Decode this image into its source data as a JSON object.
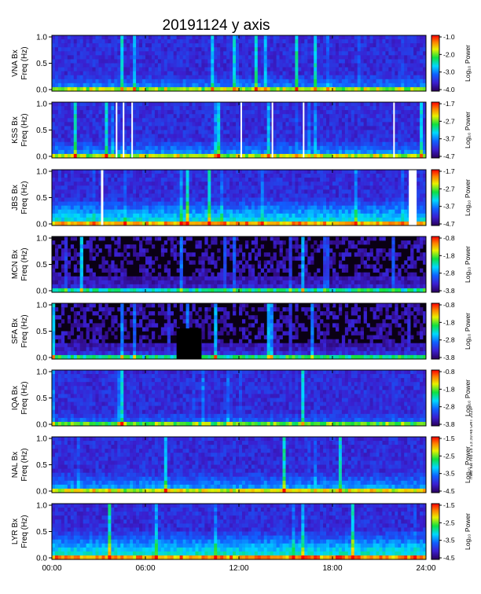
{
  "title": "20191124  y  axis",
  "side_note": "mod Tue Feb 18 13:30:48 GMT 2020",
  "chart_data": {
    "type": "heatmap",
    "title": "20191124  y  axis",
    "x_ticks": [
      "00:00",
      "06:00",
      "12:00",
      "18:00",
      "24:00"
    ],
    "x_range_hours": [
      0,
      24
    ],
    "y_range_hz": [
      0,
      1.0
    ],
    "y_ticks": [
      "0.0",
      "0.5",
      "1.0"
    ],
    "colorbar_label": "Log₁₀ Power",
    "panels": [
      {
        "station": "VNA Bx",
        "ylabel": "Freq (Hz)",
        "cbar_ticks": [
          "-1.0",
          "-2.0",
          "-3.0",
          "-4.0"
        ],
        "cbar_range": [
          -4.0,
          -1.0
        ],
        "level": 0.18,
        "dark": false,
        "gaps": []
      },
      {
        "station": "KSS Bx",
        "ylabel": "Freq (Hz)",
        "cbar_ticks": [
          "-1.7",
          "-2.7",
          "-3.7",
          "-4.7"
        ],
        "cbar_range": [
          -4.7,
          -1.7
        ],
        "level": 0.2,
        "dark": false,
        "gaps": [
          [
            4.1,
            4.2
          ],
          [
            4.55,
            4.65
          ],
          [
            5.1,
            5.2
          ],
          [
            12.1,
            12.2
          ],
          [
            14.1,
            14.2
          ],
          [
            16.1,
            16.2
          ],
          [
            21.9,
            22.0
          ]
        ]
      },
      {
        "station": "JBS Bx",
        "ylabel": "Freq (Hz)",
        "cbar_ticks": [
          "-1.7",
          "-2.7",
          "-3.7",
          "-4.7"
        ],
        "cbar_range": [
          -4.7,
          -1.7
        ],
        "level": 0.3,
        "dark": false,
        "gaps": [
          [
            3.15,
            3.3
          ],
          [
            22.9,
            23.4
          ]
        ]
      },
      {
        "station": "MCN Bx",
        "ylabel": "Freq (Hz)",
        "cbar_ticks": [
          "-0.8",
          "-1.8",
          "-2.8",
          "-3.8"
        ],
        "cbar_range": [
          -3.8,
          -0.8
        ],
        "level": 0.1,
        "dark": true,
        "gaps": []
      },
      {
        "station": "SFA Bx",
        "ylabel": "Freq (Hz)",
        "cbar_ticks": [
          "-0.8",
          "-1.8",
          "-2.8",
          "-3.8"
        ],
        "cbar_range": [
          -3.8,
          -0.8
        ],
        "level": 0.12,
        "dark": true,
        "gaps": [],
        "nodata": [
          [
            8.0,
            9.6
          ]
        ]
      },
      {
        "station": "IQA Bx",
        "ylabel": "Freq (Hz)",
        "cbar_ticks": [
          "-0.8",
          "-1.8",
          "-2.8",
          "-3.8"
        ],
        "cbar_range": [
          -3.8,
          -0.8
        ],
        "level": 0.14,
        "dark": false,
        "gaps": []
      },
      {
        "station": "NAL Bx",
        "ylabel": "Freq (Hz)",
        "cbar_ticks": [
          "-1.5",
          "-2.5",
          "-3.5",
          "-4.5"
        ],
        "cbar_range": [
          -4.5,
          -1.5
        ],
        "level": 0.22,
        "dark": false,
        "gaps": []
      },
      {
        "station": "LYR Bx",
        "ylabel": "Freq (Hz)",
        "cbar_ticks": [
          "-1.5",
          "-2.5",
          "-3.5",
          "-4.5"
        ],
        "cbar_range": [
          -4.5,
          -1.5
        ],
        "level": 0.32,
        "dark": false,
        "gaps": []
      }
    ]
  }
}
